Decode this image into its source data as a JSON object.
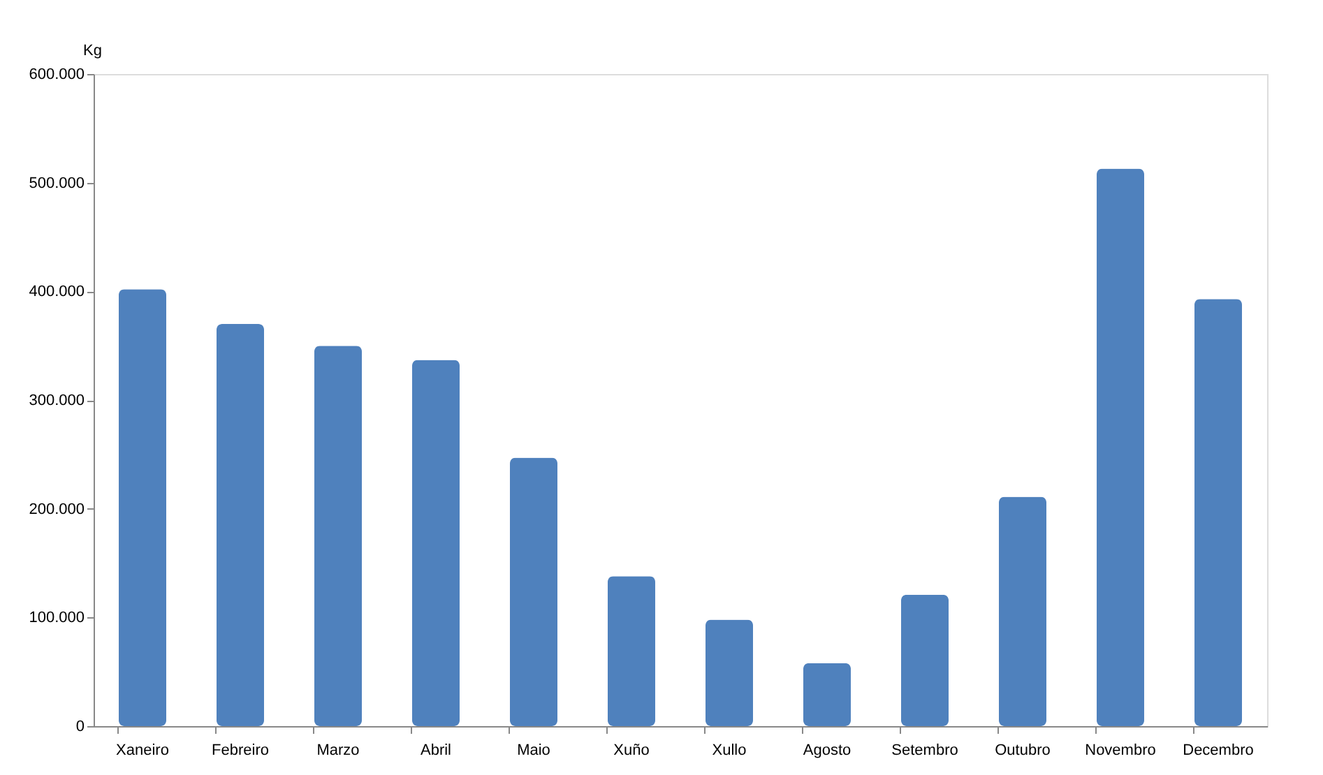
{
  "chart_data": {
    "type": "bar",
    "ylabel": "Kg",
    "categories": [
      "Xaneiro",
      "Febreiro",
      "Marzo",
      "Abril",
      "Maio",
      "Xuño",
      "Xullo",
      "Agosto",
      "Setembro",
      "Outubro",
      "Novembro",
      "Decembro"
    ],
    "series": [
      {
        "color": "#4f81bd",
        "values": [
          402000,
          370000,
          350000,
          337000,
          247000,
          138000,
          98000,
          58000,
          121000,
          211000,
          513000,
          393000
        ]
      }
    ],
    "ylim": [
      0,
      600000
    ],
    "yticks": [
      0,
      {
        "value": 100000,
        "label": "100.000"
      },
      {
        "value": 200000,
        "label": "200.000"
      },
      {
        "value": 300000,
        "label": "300.000"
      },
      {
        "value": 400000,
        "label": "400.000"
      },
      {
        "value": 500000,
        "label": "500.000"
      },
      {
        "value": 600000,
        "label": "600.000"
      }
    ],
    "grid": false,
    "legend": false
  }
}
